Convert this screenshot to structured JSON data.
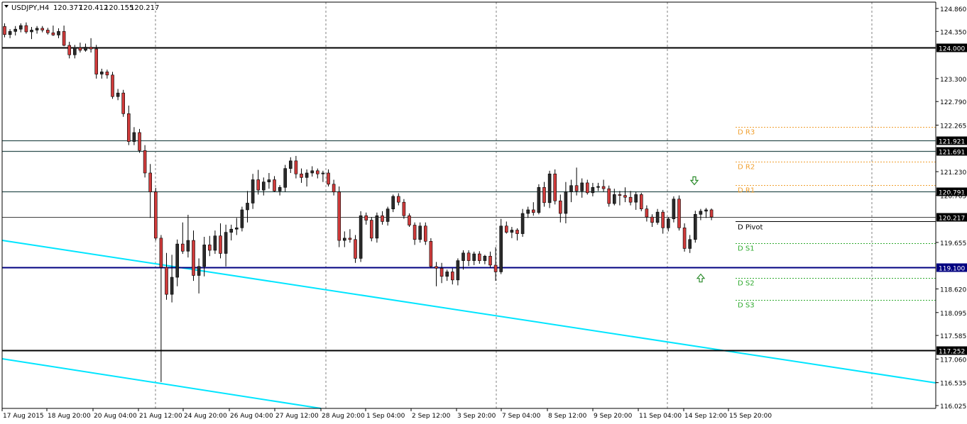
{
  "header": {
    "symbol": "USDJPY,H4",
    "open": "120.377",
    "high": "120.412",
    "low": "120.155",
    "close": "120.217"
  },
  "colors": {
    "background": "#ffffff",
    "bull_candle": "#2b2b2b",
    "bear_candle": "#d03b3b",
    "wick": "#000000",
    "grid": "#808080",
    "support_resistance": "#000000",
    "blue_level": "#000080",
    "trendline": "#00e5ff",
    "pivot_resistance": "#f0a030",
    "pivot_support": "#2faa2f",
    "arrow": "#2a8a2a"
  },
  "chart_data": {
    "type": "candlestick",
    "title": "USDJPY,H4",
    "ylim": [
      116.03,
      125.02
    ],
    "y_ticks": [
      "124.860",
      "124.350",
      "123.300",
      "122.790",
      "122.265",
      "121.230",
      "120.705",
      "119.655",
      "118.620",
      "118.095",
      "117.585",
      "117.060",
      "116.535",
      "116.025"
    ],
    "x_labels": [
      "17 Aug 2015",
      "18 Aug 20:00",
      "20 Aug 04:00",
      "21 Aug 12:00",
      "24 Aug 20:00",
      "26 Aug 04:00",
      "27 Aug 12:00",
      "28 Aug 20:00",
      "1 Sep 04:00",
      "2 Sep 12:00",
      "3 Sep 20:00",
      "7 Sep 04:00",
      "8 Sep 12:00",
      "9 Sep 20:00",
      "11 Sep 04:00",
      "14 Sep 12:00",
      "15 Sep 20:00"
    ],
    "vertical_grid_at": [
      "21 Aug 12:00",
      "28 Aug 20:00",
      "3 Sep 20:00",
      "11 Sep 04:00"
    ],
    "candles": [
      [
        124.46,
        124.53,
        124.22,
        124.28
      ],
      [
        124.28,
        124.4,
        124.2,
        124.35
      ],
      [
        124.35,
        124.47,
        124.26,
        124.4
      ],
      [
        124.4,
        124.53,
        124.33,
        124.48
      ],
      [
        124.48,
        124.55,
        124.3,
        124.34
      ],
      [
        124.34,
        124.45,
        124.18,
        124.38
      ],
      [
        124.38,
        124.47,
        124.3,
        124.42
      ],
      [
        124.42,
        124.47,
        124.33,
        124.38
      ],
      [
        124.38,
        124.43,
        124.28,
        124.32
      ],
      [
        124.32,
        124.48,
        124.25,
        124.27
      ],
      [
        124.27,
        124.42,
        124.2,
        124.35
      ],
      [
        124.35,
        124.48,
        124.02,
        124.04
      ],
      [
        124.04,
        124.12,
        123.75,
        123.83
      ],
      [
        123.83,
        124.05,
        123.75,
        123.99
      ],
      [
        123.99,
        124.1,
        123.88,
        123.93
      ],
      [
        123.93,
        124.08,
        123.9,
        124.0
      ],
      [
        124.0,
        124.2,
        123.88,
        123.96
      ],
      [
        123.96,
        124.05,
        123.3,
        123.4
      ],
      [
        123.4,
        123.52,
        123.3,
        123.45
      ],
      [
        123.45,
        123.5,
        123.3,
        123.38
      ],
      [
        123.38,
        123.45,
        122.85,
        122.9
      ],
      [
        122.9,
        123.07,
        122.82,
        122.98
      ],
      [
        122.98,
        123.05,
        122.45,
        122.52
      ],
      [
        122.52,
        122.7,
        121.82,
        121.9
      ],
      [
        121.9,
        122.22,
        121.82,
        122.1
      ],
      [
        122.1,
        122.18,
        121.65,
        121.7
      ],
      [
        121.7,
        121.82,
        121.1,
        121.2
      ],
      [
        121.2,
        121.4,
        120.2,
        120.78
      ],
      [
        120.78,
        120.87,
        119.7,
        119.75
      ],
      [
        119.75,
        119.82,
        116.55,
        119.1
      ],
      [
        119.1,
        119.42,
        118.38,
        118.5
      ],
      [
        118.5,
        119.38,
        118.32,
        118.88
      ],
      [
        118.88,
        119.72,
        118.68,
        119.62
      ],
      [
        119.62,
        120.1,
        119.4,
        119.46
      ],
      [
        119.46,
        120.27,
        119.32,
        119.7
      ],
      [
        119.7,
        119.92,
        118.8,
        118.92
      ],
      [
        118.92,
        119.3,
        118.52,
        119.12
      ],
      [
        119.12,
        119.78,
        118.9,
        119.6
      ],
      [
        119.6,
        119.8,
        119.35,
        119.48
      ],
      [
        119.48,
        119.92,
        119.4,
        119.8
      ],
      [
        119.8,
        120.08,
        119.3,
        119.41
      ],
      [
        119.41,
        120.05,
        119.12,
        119.88
      ],
      [
        119.88,
        120.05,
        119.7,
        119.95
      ],
      [
        119.95,
        120.2,
        119.82,
        119.98
      ],
      [
        119.98,
        120.45,
        119.9,
        120.38
      ],
      [
        120.38,
        120.8,
        120.1,
        120.53
      ],
      [
        120.53,
        121.18,
        120.4,
        121.05
      ],
      [
        121.05,
        121.27,
        120.72,
        120.82
      ],
      [
        120.82,
        121.1,
        120.7,
        121.0
      ],
      [
        121.0,
        121.2,
        120.85,
        121.05
      ],
      [
        121.05,
        121.13,
        120.78,
        120.8
      ],
      [
        120.8,
        120.93,
        120.7,
        120.88
      ],
      [
        120.88,
        121.38,
        120.78,
        121.3
      ],
      [
        121.3,
        121.55,
        121.2,
        121.47
      ],
      [
        121.47,
        121.58,
        121.08,
        121.18
      ],
      [
        121.18,
        121.3,
        120.98,
        121.1
      ],
      [
        121.1,
        121.28,
        120.9,
        121.2
      ],
      [
        121.2,
        121.35,
        121.12,
        121.25
      ],
      [
        121.25,
        121.3,
        121.08,
        121.18
      ],
      [
        121.18,
        121.25,
        121.0,
        121.2
      ],
      [
        121.2,
        121.28,
        120.9,
        120.95
      ],
      [
        120.95,
        121.05,
        120.7,
        120.78
      ],
      [
        120.78,
        120.9,
        119.55,
        119.7
      ],
      [
        119.7,
        119.9,
        119.55,
        119.75
      ],
      [
        119.75,
        119.95,
        119.65,
        119.72
      ],
      [
        119.72,
        119.82,
        119.2,
        119.3
      ],
      [
        119.3,
        120.35,
        119.22,
        120.25
      ],
      [
        120.25,
        120.32,
        120.05,
        120.15
      ],
      [
        120.15,
        120.22,
        119.68,
        119.75
      ],
      [
        119.75,
        120.32,
        119.65,
        120.25
      ],
      [
        120.25,
        120.35,
        120.05,
        120.12
      ],
      [
        120.12,
        120.45,
        120.03,
        120.4
      ],
      [
        120.4,
        120.72,
        120.33,
        120.68
      ],
      [
        120.68,
        120.75,
        120.48,
        120.55
      ],
      [
        120.55,
        120.62,
        120.18,
        120.25
      ],
      [
        120.25,
        120.3,
        120.0,
        120.04
      ],
      [
        120.04,
        120.1,
        119.6,
        119.72
      ],
      [
        119.72,
        120.1,
        119.65,
        120.02
      ],
      [
        120.02,
        120.1,
        119.6,
        119.68
      ],
      [
        119.68,
        119.75,
        119.08,
        119.12
      ],
      [
        119.12,
        119.22,
        118.68,
        119.08
      ],
      [
        119.08,
        119.2,
        118.75,
        118.9
      ],
      [
        118.9,
        119.05,
        118.8,
        119.0
      ],
      [
        119.0,
        119.08,
        118.72,
        118.82
      ],
      [
        118.82,
        119.3,
        118.7,
        119.25
      ],
      [
        119.25,
        119.48,
        119.05,
        119.42
      ],
      [
        119.42,
        119.48,
        119.13,
        119.25
      ],
      [
        119.25,
        119.45,
        119.15,
        119.4
      ],
      [
        119.4,
        119.46,
        119.18,
        119.25
      ],
      [
        119.25,
        119.38,
        119.17,
        119.35
      ],
      [
        119.35,
        119.45,
        119.1,
        119.15
      ],
      [
        119.15,
        119.55,
        118.8,
        119.0
      ],
      [
        119.0,
        120.18,
        118.95,
        120.02
      ],
      [
        120.02,
        120.12,
        119.85,
        119.88
      ],
      [
        119.88,
        120.0,
        119.75,
        119.93
      ],
      [
        119.93,
        119.97,
        119.7,
        119.85
      ],
      [
        119.85,
        120.4,
        119.78,
        120.3
      ],
      [
        120.3,
        120.45,
        120.2,
        120.38
      ],
      [
        120.38,
        120.55,
        120.25,
        120.32
      ],
      [
        120.32,
        120.95,
        120.28,
        120.88
      ],
      [
        120.88,
        121.0,
        120.45,
        120.54
      ],
      [
        120.54,
        121.25,
        120.42,
        121.18
      ],
      [
        121.18,
        121.28,
        120.5,
        120.58
      ],
      [
        120.58,
        120.72,
        120.1,
        120.3
      ],
      [
        120.3,
        121.0,
        120.08,
        120.78
      ],
      [
        120.78,
        121.05,
        120.55,
        120.92
      ],
      [
        120.92,
        121.32,
        120.7,
        120.8
      ],
      [
        120.8,
        121.08,
        120.65,
        120.98
      ],
      [
        120.98,
        121.05,
        120.72,
        120.76
      ],
      [
        120.76,
        120.98,
        120.68,
        120.88
      ],
      [
        120.88,
        120.98,
        120.8,
        120.9
      ],
      [
        120.9,
        121.05,
        120.78,
        120.85
      ],
      [
        120.85,
        120.92,
        120.45,
        120.52
      ],
      [
        120.52,
        120.85,
        120.48,
        120.72
      ],
      [
        120.72,
        120.8,
        120.48,
        120.7
      ],
      [
        120.7,
        120.88,
        120.55,
        120.66
      ],
      [
        120.66,
        120.8,
        120.48,
        120.55
      ],
      [
        120.55,
        120.78,
        120.38,
        120.72
      ],
      [
        120.72,
        120.76,
        120.35,
        120.4
      ],
      [
        120.4,
        120.48,
        120.12,
        120.22
      ],
      [
        120.22,
        120.28,
        120.0,
        120.1
      ],
      [
        120.1,
        120.4,
        120.05,
        120.33
      ],
      [
        120.33,
        120.38,
        119.85,
        119.98
      ],
      [
        119.98,
        120.22,
        119.9,
        120.18
      ],
      [
        120.18,
        120.68,
        120.1,
        120.62
      ],
      [
        120.62,
        120.7,
        119.92,
        119.98
      ],
      [
        119.98,
        120.08,
        119.45,
        119.52
      ],
      [
        119.52,
        119.82,
        119.42,
        119.72
      ],
      [
        119.72,
        120.36,
        119.65,
        120.28
      ],
      [
        120.28,
        120.4,
        120.15,
        120.35
      ],
      [
        120.35,
        120.42,
        120.2,
        120.38
      ],
      [
        120.38,
        120.41,
        120.15,
        120.22
      ]
    ],
    "horizontal_levels": [
      {
        "value": 124.0,
        "label": "124.000",
        "style": "support_resistance",
        "width": "thick"
      },
      {
        "value": 121.921,
        "label": "121.921",
        "style": "support_resistance",
        "width": "normal"
      },
      {
        "value": 121.691,
        "label": "121.691",
        "style": "support_resistance",
        "width": "normal"
      },
      {
        "value": 120.791,
        "label": "120.791",
        "style": "support_resistance",
        "width": "normal"
      },
      {
        "value": 120.217,
        "label": "120.217",
        "style": "price",
        "width": "thin"
      },
      {
        "value": 119.1,
        "label": "119.100",
        "style": "blue_level",
        "width": "thick"
      },
      {
        "value": 117.252,
        "label": "117.252",
        "style": "support_resistance",
        "width": "thick"
      }
    ],
    "pivot_levels": [
      {
        "name": "D R3",
        "value": 122.22,
        "kind": "resistance"
      },
      {
        "name": "D R2",
        "value": 121.45,
        "kind": "resistance"
      },
      {
        "name": "D R1",
        "value": 120.93,
        "kind": "resistance"
      },
      {
        "name": "D Pivot",
        "value": 120.12,
        "kind": "pivot"
      },
      {
        "name": "D S1",
        "value": 119.64,
        "kind": "support"
      },
      {
        "name": "D S2",
        "value": 118.86,
        "kind": "support"
      },
      {
        "name": "D S3",
        "value": 118.38,
        "kind": "support"
      }
    ],
    "trendlines": [
      {
        "from": [
          "17 Aug 2015",
          119.66
        ],
        "to": [
          "beyond 15 Sep 20:00",
          116.57
        ]
      },
      {
        "from": [
          "17 Aug 2015",
          117.06
        ],
        "to": [
          "28 Aug 20:00",
          116.07
        ]
      }
    ],
    "arrows": [
      {
        "direction": "down",
        "price": 121.02
      },
      {
        "direction": "up",
        "price": 118.87
      }
    ]
  }
}
